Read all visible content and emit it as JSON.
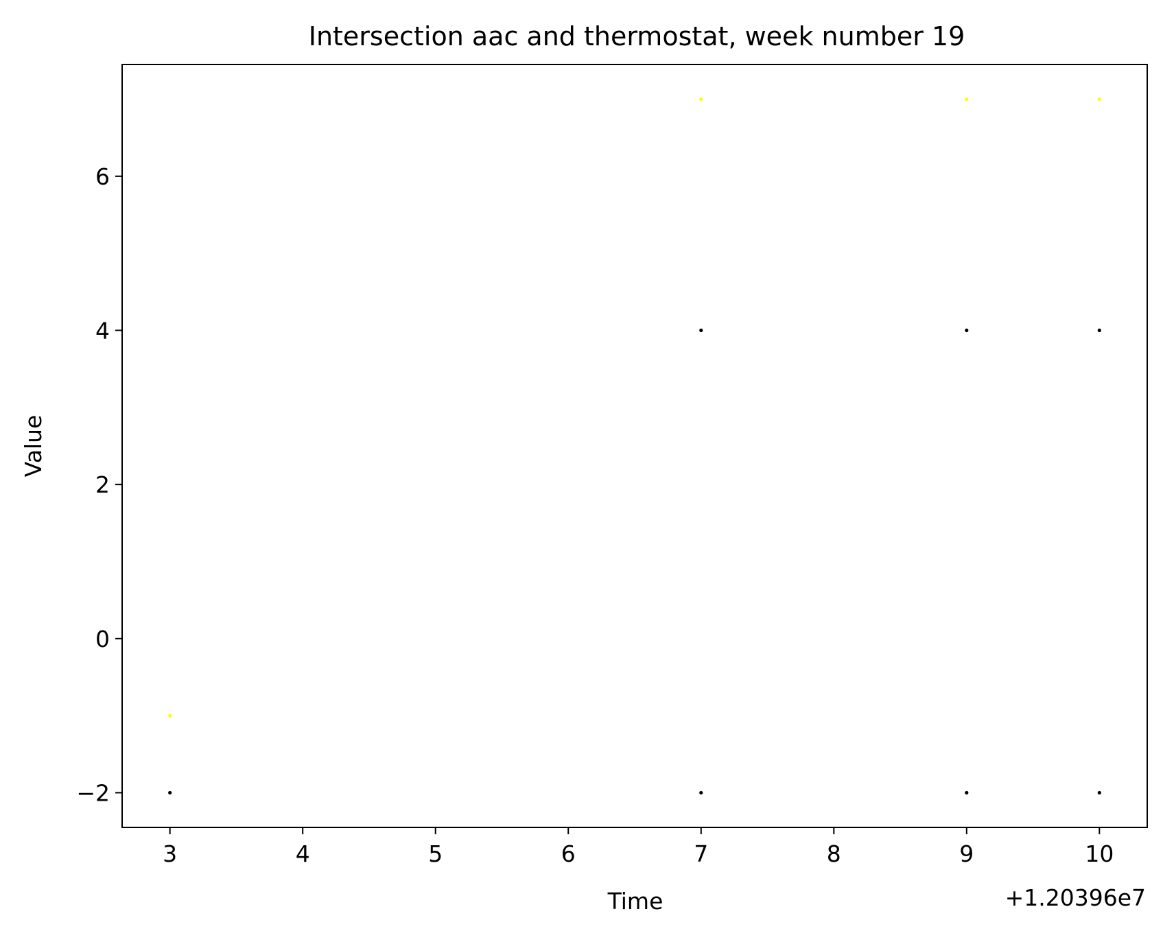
{
  "chart_data": {
    "type": "scatter",
    "title": "Intersection aac and thermostat, week number 19",
    "xlabel": "Time",
    "ylabel": "Value",
    "x_offset_label": "+1.20396e7",
    "x_offset": 12039600,
    "xlim": [
      12039602.64,
      12039610.36
    ],
    "ylim": [
      -2.45,
      7.45
    ],
    "x_ticks": [
      3,
      4,
      5,
      6,
      7,
      8,
      9,
      10
    ],
    "x_tick_labels": [
      "3",
      "4",
      "5",
      "6",
      "7",
      "8",
      "9",
      "10"
    ],
    "y_ticks": [
      -2,
      0,
      2,
      4,
      6
    ],
    "y_tick_labels": [
      "−2",
      "0",
      "2",
      "4",
      "6"
    ],
    "grid": false,
    "series": [
      {
        "color": "#ffff00",
        "points": [
          {
            "x": 12039603,
            "y": -1
          },
          {
            "x": 12039607,
            "y": 7
          },
          {
            "x": 12039609,
            "y": 7
          },
          {
            "x": 12039610,
            "y": 7
          }
        ]
      },
      {
        "color": "#000000",
        "points": [
          {
            "x": 12039603,
            "y": -2
          },
          {
            "x": 12039607,
            "y": 4
          },
          {
            "x": 12039607,
            "y": -2
          },
          {
            "x": 12039609,
            "y": 4
          },
          {
            "x": 12039609,
            "y": -2
          },
          {
            "x": 12039610,
            "y": 4
          },
          {
            "x": 12039610,
            "y": -2
          }
        ]
      }
    ]
  }
}
